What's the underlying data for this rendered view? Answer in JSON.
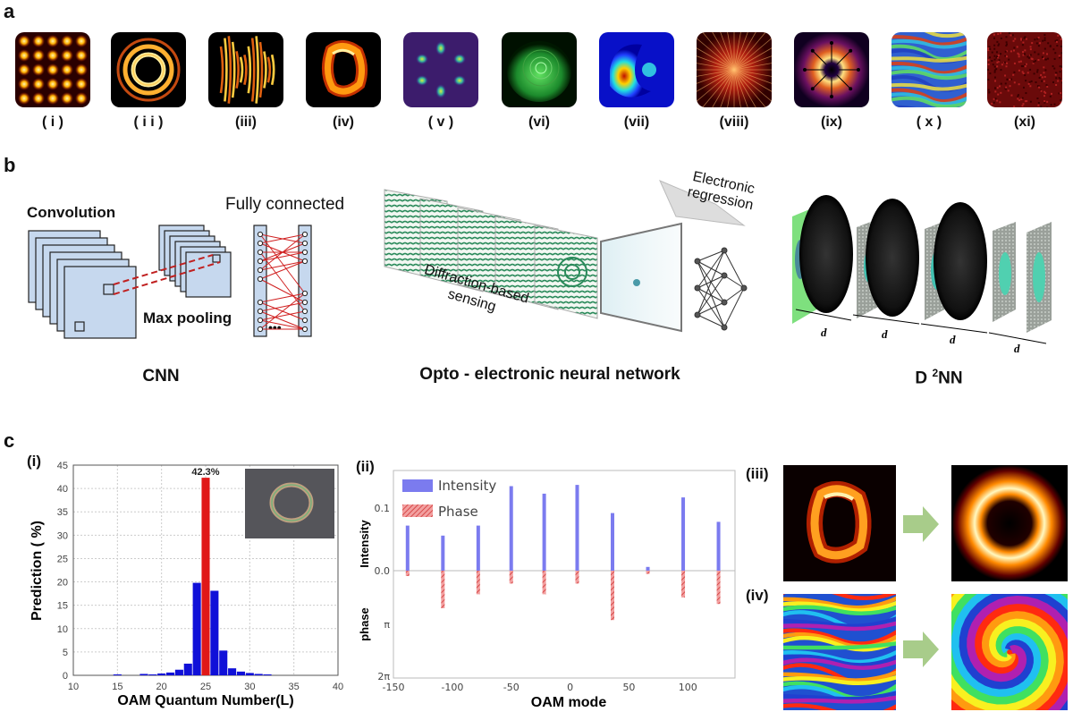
{
  "panel_a": {
    "letter": "a",
    "labels": [
      "( i )",
      "( i i )",
      "(iii)",
      "(iv)",
      "( v )",
      "(vi)",
      "(vii)",
      "(viii)",
      "(ix)",
      "( x )",
      "(xi)"
    ]
  },
  "panel_b": {
    "letter": "b",
    "cnn": {
      "convolution": "Convolution",
      "fully_connected": "Fully connected",
      "max_pooling": "Max pooling",
      "dots": "•••",
      "caption": "CNN"
    },
    "oenn": {
      "sensing_line1": "Diffraction-based",
      "sensing_line2": "sensing",
      "regression_line1": "Electronic",
      "regression_line2": "regression",
      "caption": "Opto - electronic neural network"
    },
    "d2nn": {
      "d": "d",
      "caption_main": "D",
      "caption_sup": "2",
      "caption_tail": "NN"
    }
  },
  "panel_c": {
    "letter": "c",
    "sub_i": "(i)",
    "sub_ii": "(ii)",
    "sub_iii": "(iii)",
    "sub_iv": "(iv)"
  },
  "chart_data": [
    {
      "type": "bar",
      "xlabel": "OAM Quantum Number(L)",
      "ylabel": "Prediction ( %)",
      "xlim": [
        10,
        40
      ],
      "ylim": [
        0,
        45
      ],
      "xticks": [
        "10",
        "15",
        "20",
        "25",
        "30",
        "35",
        "40"
      ],
      "yticks": [
        "0",
        "5",
        "10",
        "15",
        "20",
        "25",
        "30",
        "35",
        "40",
        "45"
      ],
      "annotation": "42.3%",
      "x": [
        15,
        18,
        19,
        20,
        21,
        22,
        23,
        24,
        25,
        26,
        27,
        28,
        29,
        30,
        31,
        32
      ],
      "values": [
        0.2,
        0.3,
        0.2,
        0.4,
        0.6,
        1.2,
        2.5,
        19.8,
        42.3,
        18.1,
        5.3,
        1.5,
        0.8,
        0.5,
        0.3,
        0.2
      ],
      "highlight_x": 25,
      "colors": {
        "bar": "#1010d8",
        "highlight": "#e01818"
      }
    },
    {
      "type": "bar",
      "xlabel": "OAM mode",
      "ylabel_top": "Intensity",
      "ylabel_bottom": "phase",
      "legend": [
        "Intensity",
        "Phase"
      ],
      "xticks": [
        "-150",
        "-100",
        "-50",
        "0",
        "50",
        "100"
      ],
      "yticks_top": [
        "0.1",
        "0.0"
      ],
      "yticks_bottom": [
        "π",
        "2π"
      ],
      "modes": [
        -138,
        -108,
        -78,
        -50,
        -22,
        6,
        36,
        66,
        96,
        126
      ],
      "intensity": [
        0.072,
        0.056,
        0.072,
        0.135,
        0.123,
        0.137,
        0.092,
        0.006,
        0.117,
        0.078
      ],
      "phase_fraction": [
        0.05,
        0.35,
        0.22,
        0.12,
        0.22,
        0.12,
        0.46,
        0.03,
        0.25,
        0.31
      ],
      "colors": {
        "intensity": "#7b7bef",
        "phase": "#ef7a7a"
      }
    }
  ]
}
